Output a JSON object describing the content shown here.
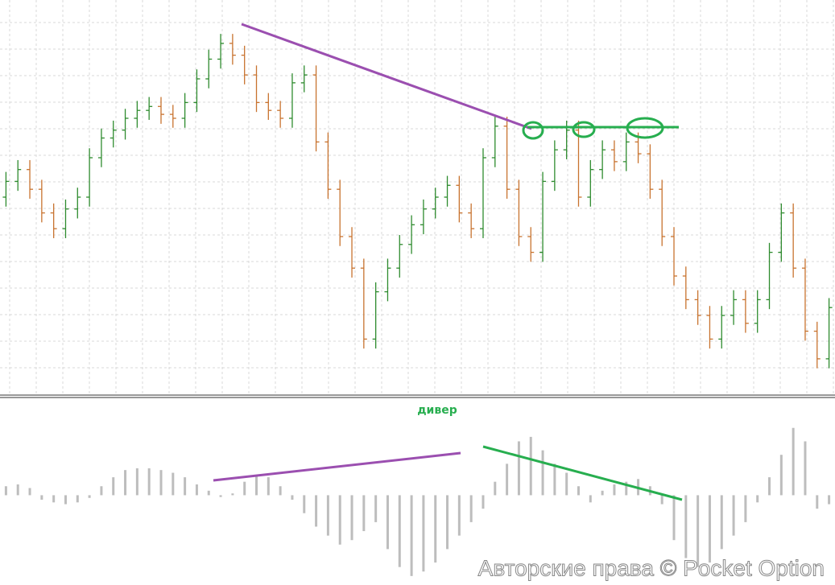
{
  "chart_data": [
    {
      "type": "ohlc",
      "up_color": "#2e8b2e",
      "down_color": "#c8732f",
      "ylim": [
        0,
        500
      ],
      "open": [
        250,
        270,
        285,
        260,
        230,
        210,
        235,
        250,
        300,
        325,
        335,
        350,
        360,
        365,
        355,
        350,
        370,
        400,
        425,
        445,
        430,
        405,
        370,
        360,
        350,
        395,
        405,
        320,
        260,
        200,
        160,
        70,
        130,
        160,
        190,
        215,
        235,
        250,
        265,
        230,
        210,
        300,
        340,
        260,
        200,
        180,
        270,
        310,
        335,
        250,
        285,
        310,
        295,
        320,
        305,
        260,
        200,
        150,
        120,
        100,
        70,
        100,
        120,
        90,
        120,
        180,
        230,
        160,
        80,
        45
      ],
      "high": [
        282,
        297,
        297,
        272,
        242,
        247,
        262,
        312,
        337,
        347,
        362,
        372,
        377,
        377,
        367,
        382,
        412,
        437,
        457,
        457,
        442,
        417,
        382,
        372,
        407,
        417,
        417,
        332,
        272,
        212,
        172,
        142,
        172,
        202,
        227,
        247,
        262,
        277,
        277,
        242,
        312,
        352,
        352,
        272,
        212,
        282,
        322,
        347,
        347,
        297,
        322,
        322,
        332,
        332,
        317,
        272,
        212,
        162,
        132,
        112,
        112,
        132,
        132,
        132,
        192,
        242,
        242,
        172,
        92,
        122
      ],
      "low": [
        238,
        258,
        248,
        218,
        198,
        198,
        223,
        238,
        288,
        313,
        323,
        338,
        348,
        343,
        338,
        338,
        358,
        388,
        413,
        418,
        393,
        358,
        348,
        338,
        338,
        383,
        308,
        248,
        188,
        148,
        58,
        58,
        118,
        148,
        178,
        203,
        223,
        238,
        218,
        198,
        198,
        288,
        248,
        188,
        168,
        168,
        258,
        298,
        238,
        238,
        273,
        283,
        283,
        293,
        248,
        188,
        138,
        108,
        88,
        58,
        58,
        88,
        78,
        78,
        108,
        168,
        148,
        68,
        33,
        33
      ],
      "close": [
        270,
        285,
        260,
        230,
        210,
        235,
        250,
        300,
        325,
        335,
        350,
        360,
        365,
        355,
        350,
        370,
        400,
        425,
        445,
        430,
        405,
        370,
        360,
        350,
        395,
        405,
        320,
        260,
        200,
        160,
        70,
        130,
        160,
        190,
        215,
        235,
        250,
        265,
        230,
        210,
        300,
        340,
        260,
        200,
        180,
        270,
        310,
        335,
        250,
        285,
        310,
        295,
        320,
        305,
        260,
        200,
        150,
        120,
        100,
        70,
        100,
        120,
        90,
        120,
        180,
        230,
        160,
        80,
        45,
        110
      ]
    },
    {
      "type": "histogram",
      "title": "дивер",
      "color": "#bdbdbd",
      "ylim": [
        -100,
        90
      ],
      "values": [
        10,
        12,
        8,
        -5,
        -8,
        -10,
        -8,
        -3,
        10,
        20,
        28,
        30,
        30,
        28,
        25,
        20,
        12,
        5,
        -2,
        2,
        15,
        22,
        20,
        10,
        -5,
        -20,
        -35,
        -45,
        -55,
        -50,
        -40,
        -30,
        -60,
        -80,
        -90,
        -85,
        -75,
        -60,
        -45,
        -30,
        -15,
        15,
        35,
        60,
        65,
        50,
        35,
        25,
        10,
        -8,
        5,
        12,
        15,
        18,
        10,
        -10,
        -50,
        -70,
        -80,
        -75,
        -60,
        -45,
        -30,
        -8,
        20,
        45,
        75,
        60,
        -15,
        -10
      ]
    }
  ],
  "watermark": "Авторские права © Pocket Option"
}
